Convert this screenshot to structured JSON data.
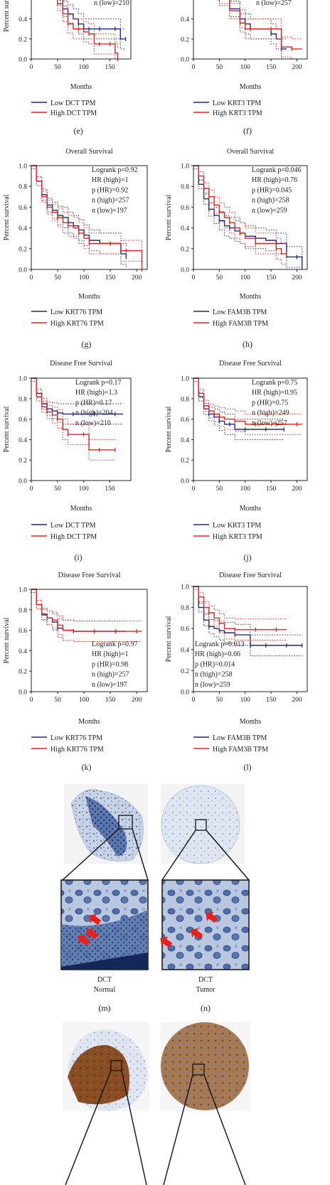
{
  "colors": {
    "low": "#1f2a7a",
    "high": "#e8211d",
    "axis": "#222222",
    "panel_border": "#222222"
  },
  "panel_labels": [
    "(e)",
    "(f)",
    "(g)",
    "(h)",
    "(i)",
    "(j)",
    "(k)",
    "(l)",
    "(m)",
    "(n)"
  ],
  "chart_data": [
    {
      "id": "e",
      "type": "line",
      "title": "",
      "xlabel": "Months",
      "ylabel": "Percent survival",
      "xlim": [
        0,
        190
      ],
      "ylim": [
        0,
        1.0
      ],
      "xticks": [
        0,
        50,
        100,
        150
      ],
      "yticks": [
        0.0,
        0.2,
        0.4
      ],
      "stats": [
        "n (low)=210"
      ],
      "legend": [
        "Low DCT TPM",
        "High DCT TPM"
      ],
      "series": [
        {
          "name": "Low DCT TPM",
          "color": "low",
          "x": [
            0,
            10,
            30,
            55,
            60,
            70,
            80,
            90,
            100,
            110,
            120,
            130,
            150,
            160,
            170,
            180
          ],
          "y": [
            1,
            0.9,
            0.75,
            0.6,
            0.5,
            0.45,
            0.4,
            0.35,
            0.3,
            0.3,
            0.3,
            0.3,
            0.3,
            0.3,
            0.2,
            0.2
          ]
        },
        {
          "name": "High DCT TPM",
          "color": "high",
          "x": [
            0,
            10,
            30,
            50,
            60,
            70,
            80,
            90,
            100,
            110,
            120,
            130,
            140,
            150,
            160,
            165
          ],
          "y": [
            1,
            0.9,
            0.75,
            0.55,
            0.45,
            0.35,
            0.3,
            0.3,
            0.27,
            0.25,
            0.15,
            0.15,
            0.15,
            0.15,
            0.06,
            0.0
          ]
        }
      ]
    },
    {
      "id": "f",
      "type": "line",
      "title": "",
      "xlabel": "Months",
      "ylabel": "",
      "xlim": [
        0,
        220
      ],
      "ylim": [
        0,
        1.0
      ],
      "xticks": [
        0,
        50,
        100,
        150,
        200
      ],
      "yticks": [
        0.0,
        0.2,
        0.4
      ],
      "stats": [
        "n (low)=257"
      ],
      "legend": [
        "Low KRT3 TPM",
        "High KRT3 TPM"
      ],
      "series": [
        {
          "name": "Low KRT3 TPM",
          "color": "low",
          "x": [
            0,
            10,
            30,
            50,
            70,
            90,
            100,
            110,
            130,
            150,
            160,
            170,
            180
          ],
          "y": [
            1,
            0.9,
            0.75,
            0.6,
            0.5,
            0.4,
            0.35,
            0.3,
            0.3,
            0.25,
            0.2,
            0.1,
            0.1
          ]
        },
        {
          "name": "High KRT3 TPM",
          "color": "high",
          "x": [
            0,
            10,
            30,
            50,
            70,
            90,
            100,
            110,
            130,
            150,
            170,
            190,
            210
          ],
          "y": [
            1,
            0.9,
            0.77,
            0.62,
            0.48,
            0.36,
            0.3,
            0.3,
            0.3,
            0.3,
            0.12,
            0.1,
            0.1
          ]
        }
      ]
    },
    {
      "id": "g",
      "type": "line",
      "title": "Overall Survival",
      "xlabel": "Months",
      "ylabel": "Percent survival",
      "xlim": [
        0,
        220
      ],
      "ylim": [
        0,
        1.0
      ],
      "xticks": [
        0,
        50,
        100,
        150,
        200
      ],
      "yticks": [
        0.0,
        0.2,
        0.4,
        0.6,
        0.8,
        1.0
      ],
      "stats": [
        "Logrank p=0.92",
        "HR (high)=1",
        "p (HR)=0.92",
        "n (high)=257",
        "n (low)=197"
      ],
      "legend": [
        "Low KRT76 TPM",
        "High KRT76 TPM"
      ],
      "series": [
        {
          "name": "Low KRT76 TPM",
          "color": "low",
          "x": [
            0,
            10,
            20,
            30,
            40,
            50,
            60,
            70,
            80,
            90,
            100,
            110,
            130,
            150,
            170,
            180
          ],
          "y": [
            1,
            0.85,
            0.72,
            0.62,
            0.57,
            0.52,
            0.5,
            0.45,
            0.42,
            0.38,
            0.33,
            0.28,
            0.25,
            0.25,
            0.15,
            0.12
          ]
        },
        {
          "name": "High KRT76 TPM",
          "color": "high",
          "x": [
            0,
            10,
            20,
            30,
            40,
            50,
            60,
            70,
            80,
            90,
            100,
            110,
            130,
            150,
            170,
            180,
            200,
            210
          ],
          "y": [
            1,
            0.85,
            0.7,
            0.6,
            0.55,
            0.5,
            0.45,
            0.42,
            0.4,
            0.35,
            0.3,
            0.25,
            0.25,
            0.25,
            0.18,
            0.18,
            0.18,
            0.0
          ]
        }
      ]
    },
    {
      "id": "h",
      "type": "line",
      "title": "Overall Survival",
      "xlabel": "Months",
      "ylabel": "Percent survival",
      "xlim": [
        0,
        220
      ],
      "ylim": [
        0,
        1.0
      ],
      "xticks": [
        0,
        50,
        100,
        150,
        200
      ],
      "yticks": [
        0.0,
        0.2,
        0.4,
        0.6,
        0.8,
        1.0
      ],
      "stats": [
        "Logrank p=0.046",
        "HR (high)=0.76",
        "p (HR)=0.045",
        "n (high)=258",
        "n (low)=259"
      ],
      "legend": [
        "Low FAM3B TPM",
        "High FAM3B TPM"
      ],
      "series": [
        {
          "name": "Low FAM3B TPM",
          "color": "low",
          "x": [
            0,
            10,
            20,
            30,
            40,
            50,
            60,
            70,
            80,
            90,
            100,
            120,
            140,
            160,
            180,
            200,
            210
          ],
          "y": [
            1,
            0.82,
            0.68,
            0.58,
            0.52,
            0.47,
            0.42,
            0.4,
            0.37,
            0.35,
            0.32,
            0.3,
            0.28,
            0.25,
            0.12,
            0.12,
            0.0
          ]
        },
        {
          "name": "High FAM3B TPM",
          "color": "high",
          "x": [
            0,
            10,
            20,
            30,
            40,
            50,
            60,
            70,
            80,
            90,
            100,
            120,
            140,
            160,
            170,
            180
          ],
          "y": [
            1,
            0.9,
            0.78,
            0.7,
            0.62,
            0.55,
            0.5,
            0.45,
            0.4,
            0.35,
            0.3,
            0.25,
            0.25,
            0.2,
            0.15,
            0.15
          ]
        }
      ]
    },
    {
      "id": "i",
      "type": "line",
      "title": "Disease Free Survival",
      "xlabel": "Months",
      "ylabel": "Percent survival",
      "xlim": [
        0,
        190
      ],
      "ylim": [
        0,
        1.0
      ],
      "xticks": [
        0,
        50,
        100,
        150
      ],
      "yticks": [
        0.0,
        0.2,
        0.4,
        0.6,
        0.8,
        1.0
      ],
      "stats": [
        "Logrank p=0.17",
        "HR (high)=1.3",
        "p (HR)=0.17",
        "n (high)=204",
        "n (low)=210"
      ],
      "legend": [
        "Low DCT TPM",
        "High DCT TPM"
      ],
      "series": [
        {
          "name": "Low DCT TPM",
          "color": "low",
          "x": [
            0,
            10,
            20,
            30,
            40,
            50,
            60,
            80,
            100,
            120,
            140,
            160,
            175
          ],
          "y": [
            1,
            0.85,
            0.75,
            0.7,
            0.68,
            0.66,
            0.65,
            0.65,
            0.65,
            0.65,
            0.65,
            0.65,
            0.65
          ]
        },
        {
          "name": "High DCT TPM",
          "color": "high",
          "x": [
            0,
            10,
            20,
            30,
            40,
            50,
            60,
            70,
            90,
            100,
            110,
            130,
            150,
            160
          ],
          "y": [
            1,
            0.82,
            0.72,
            0.67,
            0.64,
            0.6,
            0.5,
            0.45,
            0.45,
            0.45,
            0.3,
            0.3,
            0.3,
            0.3
          ]
        }
      ]
    },
    {
      "id": "j",
      "type": "line",
      "title": "Disease Free Survival",
      "xlabel": "Months",
      "ylabel": "Percent survival",
      "xlim": [
        0,
        220
      ],
      "ylim": [
        0,
        1.0
      ],
      "xticks": [
        0,
        50,
        100,
        150,
        200
      ],
      "yticks": [
        0.0,
        0.2,
        0.4,
        0.6,
        0.8,
        1.0
      ],
      "stats": [
        "Logrank p=0.75",
        "HR (high)=0.95",
        "p (HR)=0.75",
        "n (high)=249",
        "n (low)=257"
      ],
      "legend": [
        "Low KRT3 TPM",
        "High KRT3 TPM"
      ],
      "series": [
        {
          "name": "Low KRT3 TPM",
          "color": "low",
          "x": [
            0,
            10,
            20,
            30,
            40,
            50,
            60,
            70,
            80,
            100,
            120,
            140,
            160,
            175
          ],
          "y": [
            1,
            0.82,
            0.7,
            0.65,
            0.62,
            0.58,
            0.55,
            0.55,
            0.5,
            0.5,
            0.5,
            0.5,
            0.5,
            0.5
          ]
        },
        {
          "name": "High KRT3 TPM",
          "color": "high",
          "x": [
            0,
            10,
            20,
            30,
            40,
            50,
            60,
            80,
            100,
            120,
            140,
            160,
            180,
            200,
            210
          ],
          "y": [
            1,
            0.85,
            0.73,
            0.68,
            0.65,
            0.62,
            0.6,
            0.58,
            0.55,
            0.55,
            0.55,
            0.55,
            0.55,
            0.55,
            0.55
          ]
        }
      ]
    },
    {
      "id": "k",
      "type": "line",
      "title": "Disease Free Survival",
      "xlabel": "Months",
      "ylabel": "Percent survival",
      "xlim": [
        0,
        220
      ],
      "ylim": [
        0,
        1.0
      ],
      "xticks": [
        0,
        50,
        100,
        150,
        200
      ],
      "yticks": [
        0.0,
        0.2,
        0.4,
        0.6,
        0.8,
        1.0
      ],
      "stats": [
        "Logrank p=0.97",
        "HR (high)=1",
        "p (HR)=0.98",
        "n (high)=257",
        "n (low)=197"
      ],
      "legend": [
        "Low KRT76 TPM",
        "High KRT76 TPM"
      ],
      "series": [
        {
          "name": "Low KRT76 TPM",
          "color": "low",
          "x": [
            0,
            10,
            20,
            30,
            40,
            50,
            60,
            80,
            100,
            120,
            140,
            160,
            180
          ],
          "y": [
            1,
            0.85,
            0.75,
            0.72,
            0.68,
            0.62,
            0.6,
            0.59,
            0.59,
            0.59,
            0.59,
            0.59,
            0.59
          ]
        },
        {
          "name": "High KRT76 TPM",
          "color": "high",
          "x": [
            0,
            10,
            20,
            30,
            40,
            50,
            60,
            80,
            100,
            120,
            140,
            160,
            180,
            200,
            210
          ],
          "y": [
            1,
            0.85,
            0.76,
            0.72,
            0.7,
            0.65,
            0.6,
            0.59,
            0.59,
            0.59,
            0.59,
            0.59,
            0.59,
            0.59,
            0.59
          ]
        }
      ]
    },
    {
      "id": "l",
      "type": "line",
      "title": "Disease Free Survival",
      "xlabel": "Months",
      "ylabel": "Percent survival",
      "xlim": [
        0,
        220
      ],
      "ylim": [
        0,
        1.0
      ],
      "xticks": [
        0,
        50,
        100,
        150,
        200
      ],
      "yticks": [
        0.0,
        0.2,
        0.4,
        0.6,
        0.8,
        1.0
      ],
      "stats": [
        "Logrank p=0.013",
        "HR (high)=0.66",
        "p (HR)=0.014",
        "n (high)=258",
        "n (low)=259"
      ],
      "legend": [
        "Low FAM3B TPM",
        "High FAM3B TPM"
      ],
      "series": [
        {
          "name": "Low FAM3B TPM",
          "color": "low",
          "x": [
            0,
            10,
            20,
            30,
            40,
            50,
            60,
            80,
            100,
            110,
            120,
            140,
            160,
            180,
            200,
            210
          ],
          "y": [
            1,
            0.8,
            0.68,
            0.62,
            0.6,
            0.58,
            0.56,
            0.54,
            0.54,
            0.44,
            0.44,
            0.44,
            0.44,
            0.44,
            0.44,
            0.44
          ]
        },
        {
          "name": "High FAM3B TPM",
          "color": "high",
          "x": [
            0,
            10,
            20,
            30,
            40,
            50,
            60,
            80,
            100,
            120,
            140,
            160,
            180
          ],
          "y": [
            1,
            0.9,
            0.8,
            0.75,
            0.7,
            0.65,
            0.6,
            0.59,
            0.59,
            0.59,
            0.59,
            0.59,
            0.59
          ]
        }
      ]
    }
  ],
  "ihc": {
    "m_caption": [
      "DCT",
      "Normal"
    ],
    "n_caption": [
      "DCT",
      "Tumor"
    ]
  }
}
